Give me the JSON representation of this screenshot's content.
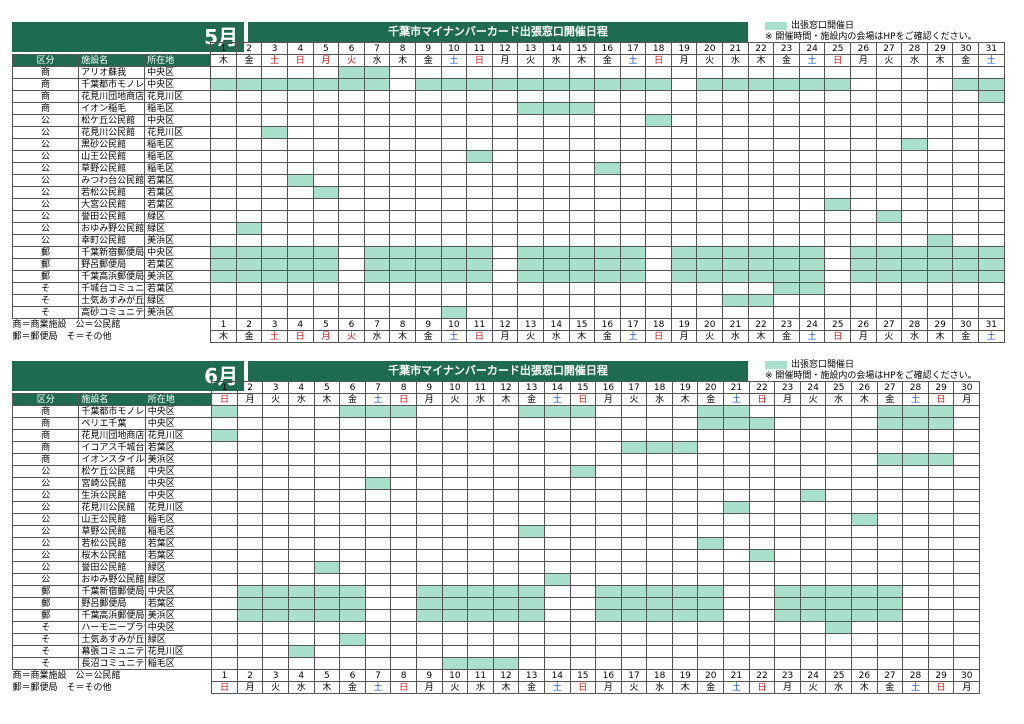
{
  "colors": {
    "header": "#1f6b4f",
    "open": "#a8e0cc",
    "sun_hol": "#d01010",
    "sat": "#1050c0"
  },
  "legend": {
    "label": "出張窓口開催日",
    "note": "※ 開催時間・施設内の会場はHPをご確認ください。"
  },
  "notes": {
    "line1": "商＝商業施設　公＝公民館",
    "line2": "郵＝郵便局　そ＝その他"
  },
  "headers": {
    "kind": "区分",
    "facility": "施設名",
    "ward": "所在地"
  },
  "months": [
    {
      "month": "5月",
      "title": "千葉市マイナンバーカード出張窓口開催日程",
      "days": [
        "1",
        "2",
        "3",
        "4",
        "5",
        "6",
        "7",
        "8",
        "9",
        "10",
        "11",
        "12",
        "13",
        "14",
        "15",
        "16",
        "17",
        "18",
        "19",
        "20",
        "21",
        "22",
        "23",
        "24",
        "25",
        "26",
        "27",
        "28",
        "29",
        "30",
        "31"
      ],
      "weekdays": [
        "木",
        "金",
        "土",
        "日",
        "月",
        "火",
        "水",
        "木",
        "金",
        "土",
        "日",
        "月",
        "火",
        "水",
        "木",
        "金",
        "土",
        "日",
        "月",
        "火",
        "水",
        "木",
        "金",
        "土",
        "日",
        "月",
        "火",
        "水",
        "木",
        "金",
        "土"
      ],
      "wdclass": [
        "",
        "",
        "red",
        "red",
        "red",
        "red",
        "",
        "",
        "",
        "blue",
        "red",
        "",
        "",
        "",
        "",
        "",
        "blue",
        "red",
        "",
        "",
        "",
        "",
        "",
        "blue",
        "red",
        "",
        "",
        "",
        "",
        "",
        "blue"
      ],
      "rows": [
        {
          "kind": "商",
          "name": "アリオ蘇我",
          "ward": "中央区",
          "on": [
            6,
            7
          ]
        },
        {
          "kind": "商",
          "name": "千葉都市モノレール千葉駅",
          "ward": "中央区",
          "on": [
            1,
            2,
            3,
            4,
            5,
            6,
            7,
            9,
            10,
            11,
            12,
            13,
            14,
            15,
            16,
            17,
            18,
            20,
            21,
            22,
            23,
            24,
            25,
            30,
            31
          ]
        },
        {
          "kind": "商",
          "name": "花見川団地商店街",
          "ward": "花見川区",
          "on": [
            31
          ]
        },
        {
          "kind": "商",
          "name": "イオン稲毛",
          "ward": "稲毛区",
          "on": [
            13,
            14,
            15
          ]
        },
        {
          "kind": "公",
          "name": "松ケ丘公民館",
          "ward": "中央区",
          "on": [
            18
          ]
        },
        {
          "kind": "公",
          "name": "花見川公民館",
          "ward": "花見川区",
          "on": [
            3
          ]
        },
        {
          "kind": "公",
          "name": "黒砂公民館",
          "ward": "稲毛区",
          "on": [
            28
          ]
        },
        {
          "kind": "公",
          "name": "山王公民館",
          "ward": "稲毛区",
          "on": [
            11
          ]
        },
        {
          "kind": "公",
          "name": "草野公民館",
          "ward": "稲毛区",
          "on": [
            16
          ]
        },
        {
          "kind": "公",
          "name": "みつわ台公民館",
          "ward": "若葉区",
          "on": [
            4
          ]
        },
        {
          "kind": "公",
          "name": "若松公民館",
          "ward": "若葉区",
          "on": [
            5
          ]
        },
        {
          "kind": "公",
          "name": "大宮公民館",
          "ward": "若葉区",
          "on": [
            25
          ]
        },
        {
          "kind": "公",
          "name": "誉田公民館",
          "ward": "緑区",
          "on": [
            27
          ]
        },
        {
          "kind": "公",
          "name": "おゆみ野公民館",
          "ward": "緑区",
          "on": [
            2
          ]
        },
        {
          "kind": "公",
          "name": "幸町公民館",
          "ward": "美浜区",
          "on": [
            29
          ]
        },
        {
          "kind": "郵",
          "name": "千葉新宿郵便局",
          "ward": "中央区",
          "on": [
            1,
            2,
            3,
            4,
            5,
            7,
            8,
            9,
            10,
            11,
            13,
            14,
            15,
            16,
            17,
            19,
            20,
            21,
            22,
            23,
            24,
            26,
            27,
            28,
            29,
            30,
            31
          ]
        },
        {
          "kind": "郵",
          "name": "野呂郵便局",
          "ward": "若葉区",
          "on": [
            1,
            2,
            3,
            4,
            5,
            7,
            8,
            9,
            10,
            11,
            13,
            14,
            15,
            16,
            17,
            19,
            20,
            21,
            22,
            23,
            24,
            26,
            27,
            28,
            29,
            30,
            31
          ]
        },
        {
          "kind": "郵",
          "name": "千葉高浜郵便局",
          "ward": "美浜区",
          "on": [
            1,
            2,
            3,
            4,
            5,
            7,
            8,
            9,
            10,
            11,
            13,
            14,
            15,
            16,
            17,
            19,
            20,
            21,
            22,
            23,
            24,
            26,
            27,
            28,
            29,
            30,
            31
          ]
        },
        {
          "kind": "そ",
          "name": "千城台コミュニティセンター",
          "ward": "若葉区",
          "on": [
            23,
            24
          ]
        },
        {
          "kind": "そ",
          "name": "土気あすみが丘プラザ",
          "ward": "緑区",
          "on": [
            21,
            22
          ]
        },
        {
          "kind": "そ",
          "name": "高砂コミュニティセンター",
          "ward": "美浜区",
          "on": [
            10
          ]
        }
      ]
    },
    {
      "month": "6月",
      "title": "千葉市マイナンバーカード出張窓口開催日程",
      "days": [
        "1",
        "2",
        "3",
        "4",
        "5",
        "6",
        "7",
        "8",
        "9",
        "10",
        "11",
        "12",
        "13",
        "14",
        "15",
        "16",
        "17",
        "18",
        "19",
        "20",
        "21",
        "22",
        "23",
        "24",
        "25",
        "26",
        "27",
        "28",
        "29",
        "30"
      ],
      "weekdays": [
        "日",
        "月",
        "火",
        "水",
        "木",
        "金",
        "土",
        "日",
        "月",
        "火",
        "水",
        "木",
        "金",
        "土",
        "日",
        "月",
        "火",
        "水",
        "木",
        "金",
        "土",
        "日",
        "月",
        "火",
        "水",
        "木",
        "金",
        "土",
        "日",
        "月"
      ],
      "wdclass": [
        "red",
        "",
        "",
        "",
        "",
        "",
        "blue",
        "red",
        "",
        "",
        "",
        "",
        "",
        "blue",
        "red",
        "",
        "",
        "",
        "",
        "",
        "blue",
        "red",
        "",
        "",
        "",
        "",
        "",
        "blue",
        "red",
        ""
      ],
      "rows": [
        {
          "kind": "商",
          "name": "千葉都市モノレール千葉駅",
          "ward": "中央区",
          "on": [
            1,
            6,
            7,
            8,
            13,
            14,
            15,
            20,
            21,
            27,
            28,
            29
          ]
        },
        {
          "kind": "商",
          "name": "ペリエ千葉",
          "ward": "中央区",
          "on": [
            20,
            21,
            22,
            27,
            28,
            29
          ]
        },
        {
          "kind": "商",
          "name": "花見川団地商店街",
          "ward": "花見川区",
          "on": [
            1
          ]
        },
        {
          "kind": "商",
          "name": "イコアス千城台",
          "ward": "若葉区",
          "on": [
            17,
            18,
            19
          ]
        },
        {
          "kind": "商",
          "name": "イオンスタイル検見川浜",
          "ward": "美浜区",
          "on": [
            27,
            28,
            29
          ]
        },
        {
          "kind": "公",
          "name": "松ケ丘公民館",
          "ward": "中央区",
          "on": [
            15
          ]
        },
        {
          "kind": "公",
          "name": "宮崎公民館",
          "ward": "中央区",
          "on": [
            7
          ]
        },
        {
          "kind": "公",
          "name": "生浜公民館",
          "ward": "中央区",
          "on": [
            24
          ]
        },
        {
          "kind": "公",
          "name": "花見川公民館",
          "ward": "花見川区",
          "on": [
            21
          ]
        },
        {
          "kind": "公",
          "name": "山王公民館",
          "ward": "稲毛区",
          "on": [
            26
          ]
        },
        {
          "kind": "公",
          "name": "草野公民館",
          "ward": "稲毛区",
          "on": [
            13
          ]
        },
        {
          "kind": "公",
          "name": "若松公民館",
          "ward": "若葉区",
          "on": [
            20
          ]
        },
        {
          "kind": "公",
          "name": "桜木公民館",
          "ward": "若葉区",
          "on": [
            22
          ]
        },
        {
          "kind": "公",
          "name": "誉田公民館",
          "ward": "緑区",
          "on": [
            5
          ]
        },
        {
          "kind": "公",
          "name": "おゆみ野公民館",
          "ward": "緑区",
          "on": [
            14
          ]
        },
        {
          "kind": "郵",
          "name": "千葉新宿郵便局",
          "ward": "中央区",
          "on": [
            2,
            3,
            4,
            5,
            6,
            9,
            10,
            11,
            12,
            13,
            16,
            17,
            18,
            19,
            20,
            23,
            24,
            25,
            26,
            27
          ]
        },
        {
          "kind": "郵",
          "name": "野呂郵便局",
          "ward": "若葉区",
          "on": [
            2,
            3,
            4,
            5,
            6,
            9,
            10,
            11,
            12,
            13,
            16,
            17,
            18,
            19,
            20,
            23,
            24,
            25,
            26,
            27
          ]
        },
        {
          "kind": "郵",
          "name": "千葉高浜郵便局",
          "ward": "美浜区",
          "on": [
            2,
            3,
            4,
            5,
            6,
            9,
            10,
            11,
            12,
            13,
            16,
            17,
            18,
            19,
            20,
            23,
            24,
            25,
            26,
            27
          ]
        },
        {
          "kind": "そ",
          "name": "ハーモニープラザ分館",
          "ward": "中央区",
          "on": [
            25
          ]
        },
        {
          "kind": "そ",
          "name": "土気あすみが丘プラザ",
          "ward": "緑区",
          "on": [
            6
          ]
        },
        {
          "kind": "そ",
          "name": "幕張コミュニティセンター",
          "ward": "花見川区",
          "on": [
            4
          ]
        },
        {
          "kind": "そ",
          "name": "長沼コミュニティセンター",
          "ward": "稲毛区",
          "on": [
            10,
            11,
            12
          ]
        }
      ]
    }
  ]
}
